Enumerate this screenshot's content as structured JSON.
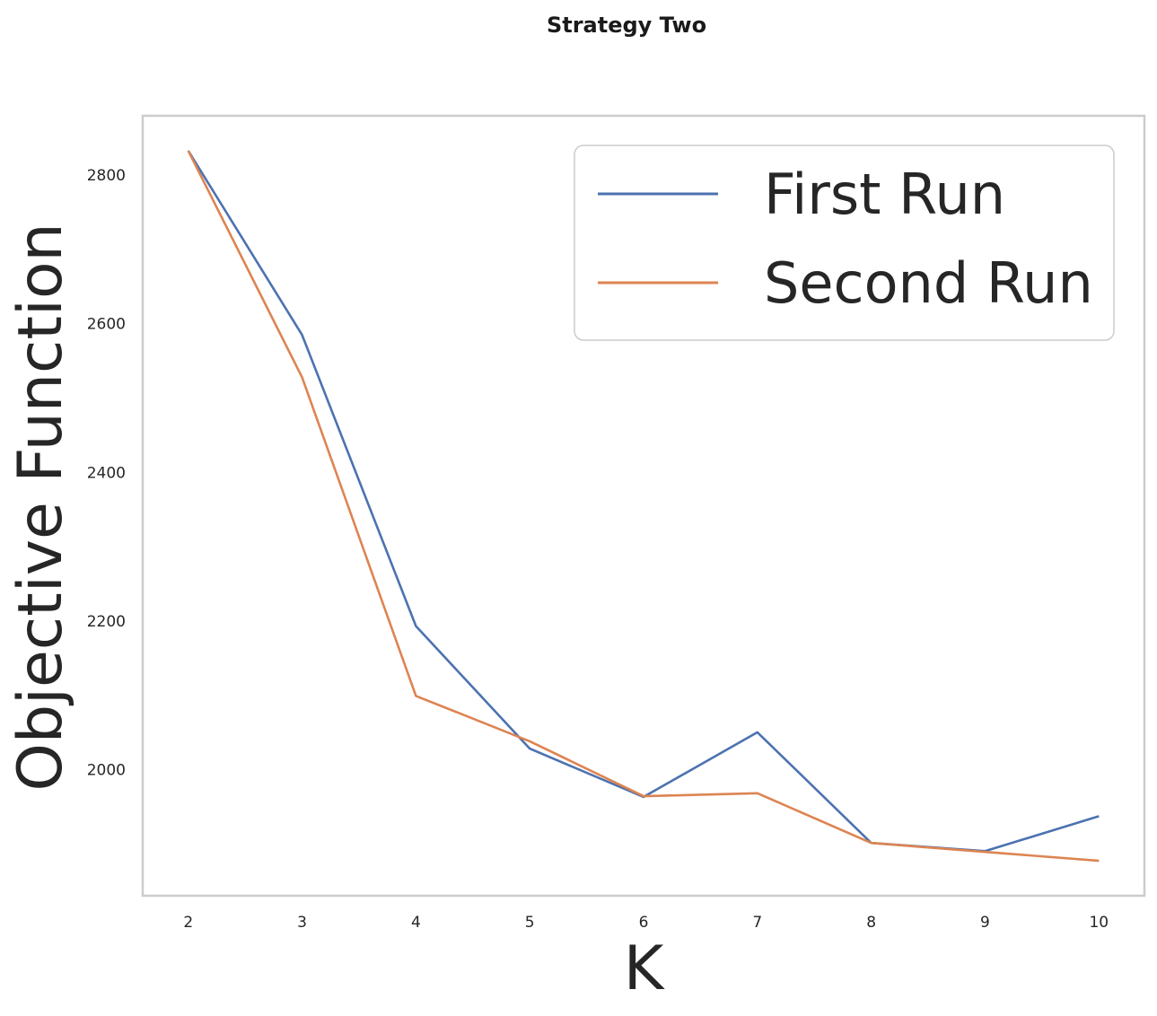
{
  "chart_data": {
    "type": "line",
    "title": "Strategy Two",
    "xlabel": "K",
    "ylabel": "Objective Function",
    "x": [
      2,
      3,
      4,
      5,
      6,
      7,
      8,
      9,
      10
    ],
    "xlim": [
      1.6,
      10.4
    ],
    "ylim": [
      1830,
      2880
    ],
    "yticks": [
      2000,
      2200,
      2400,
      2600,
      2800
    ],
    "xticks": [
      2,
      3,
      4,
      5,
      6,
      7,
      8,
      9,
      10
    ],
    "grid": false,
    "legend_position": "upper right",
    "series": [
      {
        "name": "First Run",
        "color": "#4c72b0",
        "values": [
          2833,
          2585,
          2193,
          2028,
          1963,
          2050,
          1901,
          1890,
          1937
        ]
      },
      {
        "name": "Second Run",
        "color": "#dd8452",
        "values": [
          2833,
          2528,
          2099,
          2038,
          1964,
          1968,
          1901,
          1889,
          1877
        ]
      }
    ]
  }
}
